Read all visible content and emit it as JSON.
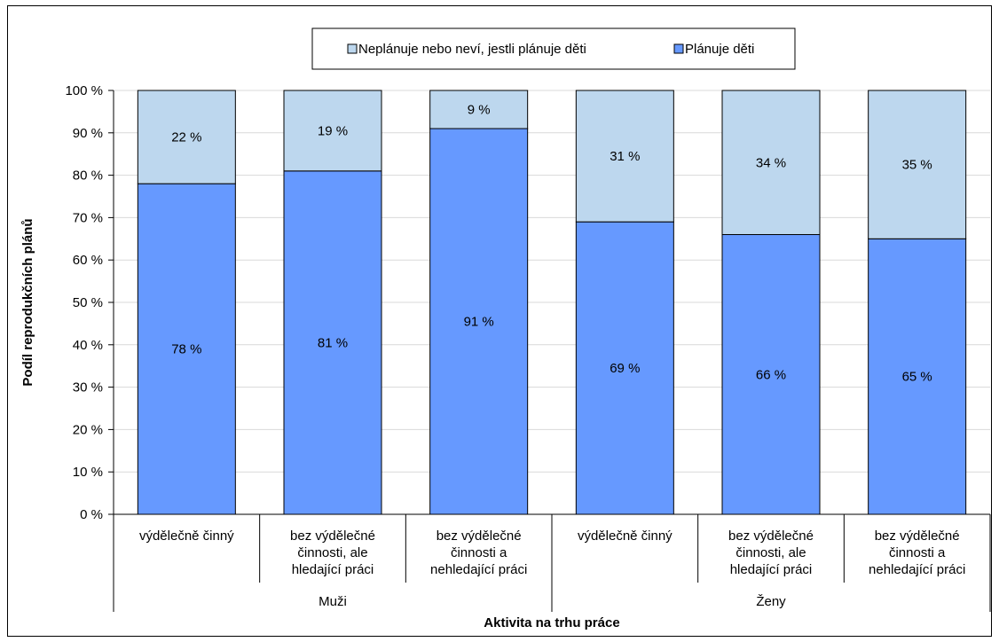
{
  "chart_data": {
    "type": "bar",
    "stacked": true,
    "normalized": true,
    "ylabel": "Podíl reprodukčních plánů",
    "xlabel": "Aktivita na trhu práce",
    "ylim": [
      0,
      100
    ],
    "y_ticks": [
      "0 %",
      "10 %",
      "20 %",
      "30 %",
      "40 %",
      "50 %",
      "60 %",
      "70 %",
      "80 %",
      "90 %",
      "100 %"
    ],
    "grid": true,
    "legend_position": "top",
    "categories": [
      {
        "lines": [
          "výdělečně činný"
        ],
        "group": "Muži"
      },
      {
        "lines": [
          "bez výdělečné",
          "činnosti, ale",
          "hledající práci"
        ],
        "group": "Muži"
      },
      {
        "lines": [
          "bez výdělečné",
          "činnosti a",
          "nehledající práci"
        ],
        "group": "Muži"
      },
      {
        "lines": [
          "výdělečně činný"
        ],
        "group": "Ženy"
      },
      {
        "lines": [
          "bez výdělečné",
          "činnosti, ale",
          "hledající práci"
        ],
        "group": "Ženy"
      },
      {
        "lines": [
          "bez výdělečné",
          "činnosti a",
          "nehledající práci"
        ],
        "group": "Ženy"
      }
    ],
    "groups": [
      "Muži",
      "Ženy"
    ],
    "series": [
      {
        "name": "Plánuje děti",
        "color": "#6699ff",
        "values": [
          78,
          81,
          91,
          69,
          66,
          65
        ],
        "labels": [
          "78 %",
          "81 %",
          "91 %",
          "69 %",
          "66 %",
          "65 %"
        ]
      },
      {
        "name": "Neplánuje nebo neví, jestli plánuje děti",
        "color": "#bdd7ee",
        "values": [
          22,
          19,
          9,
          31,
          34,
          35
        ],
        "labels": [
          "22 %",
          "19 %",
          "9 %",
          "31 %",
          "34 %",
          "35 %"
        ]
      }
    ],
    "legend_order": [
      "Neplánuje nebo neví, jestli plánuje děti",
      "Plánuje děti"
    ]
  }
}
